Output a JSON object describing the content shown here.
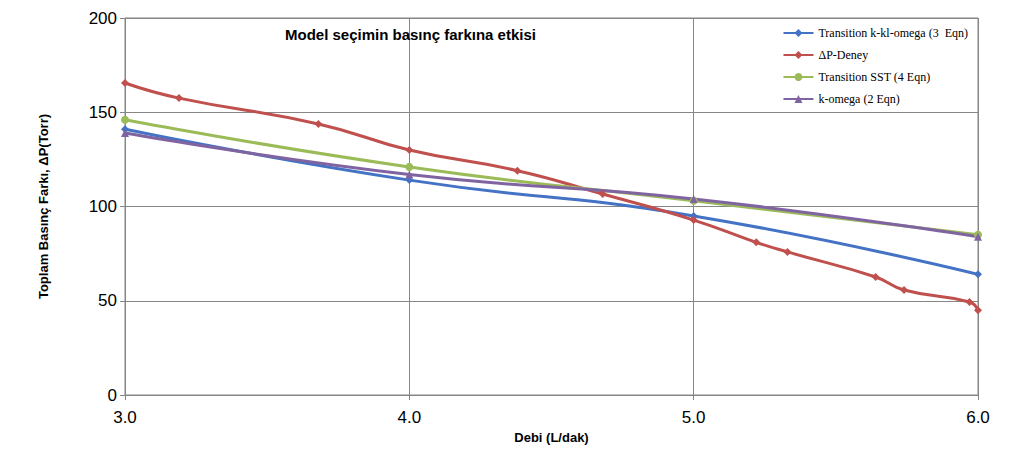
{
  "chart_data": {
    "type": "line",
    "title": "Model seçimin basınç farkına etkisi",
    "x_label": "Debi (L/dak)",
    "y_label": "Toplam Basınç Farkı, ΔP(Torr)",
    "xlim": [
      3,
      6
    ],
    "xticks": [
      {
        "value": 3,
        "label": "3.0"
      },
      {
        "value": 4,
        "label": "4.0"
      },
      {
        "value": 5,
        "label": "5.0"
      },
      {
        "value": 6,
        "label": "6.0"
      }
    ],
    "ylim": [
      0,
      200
    ],
    "yticks": [
      0,
      50,
      100,
      150,
      200
    ],
    "grid": true,
    "legend": "upper right",
    "series": [
      {
        "name": "Transition k-kl-omega (3  Eqn)",
        "color": "#4472c4",
        "marker": "diamond",
        "x": [
          3,
          4,
          5,
          6
        ],
        "values": [
          141,
          114,
          95,
          64
        ]
      },
      {
        "name": "ΔP-Deney",
        "color": "#c0504d",
        "marker": "diamond",
        "x": [
          3,
          3.19,
          3.68,
          4,
          4.38,
          4.68,
          5,
          5.22,
          5.33,
          5.64,
          5.74,
          5.97,
          6
        ],
        "values": [
          165.5,
          157.5,
          143.8,
          130,
          119,
          106.6,
          92.8,
          81,
          75.9,
          62.6,
          55.7,
          49.3,
          45
        ]
      },
      {
        "name": "Transition SST (4 Eqn)",
        "color": "#9bbb59",
        "marker": "circle",
        "x": [
          3,
          4,
          5,
          6
        ],
        "values": [
          146,
          121,
          103,
          85
        ]
      },
      {
        "name": "k-omega (2 Eqn)",
        "color": "#8064a2",
        "marker": "triangle",
        "x": [
          3,
          4,
          5,
          6
        ],
        "values": [
          139,
          117,
          104,
          84
        ]
      }
    ]
  }
}
